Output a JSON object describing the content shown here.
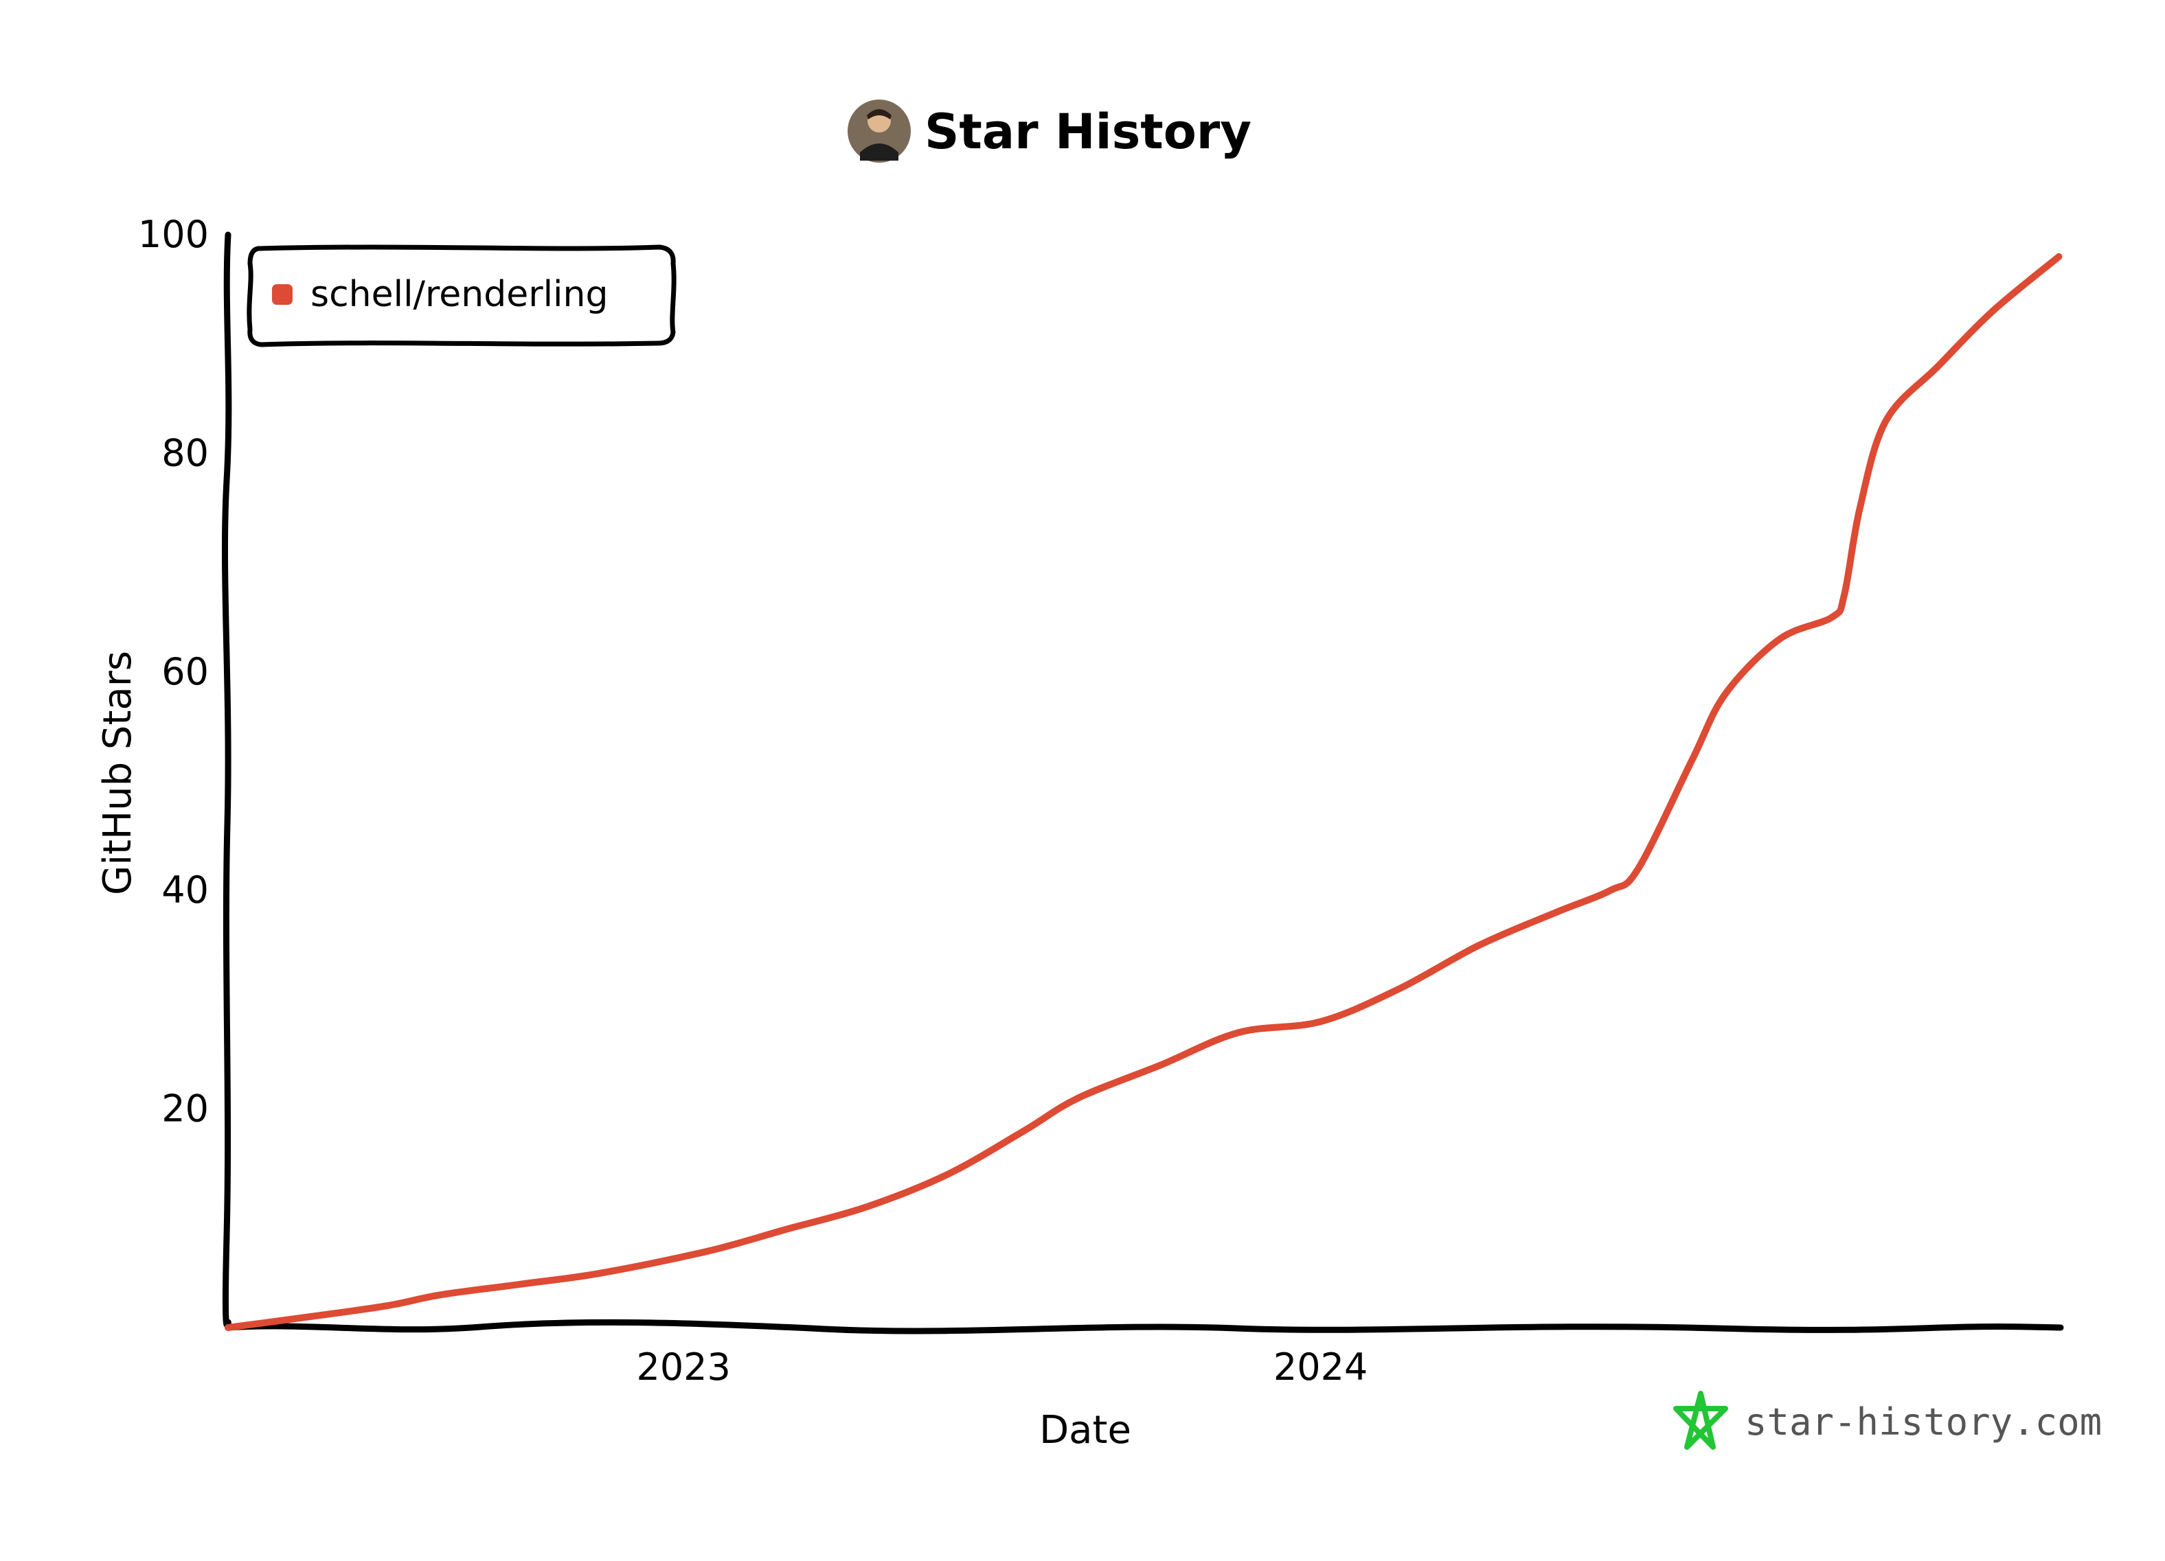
{
  "chart_data": {
    "type": "line",
    "title": "Star History",
    "xlabel": "Date",
    "ylabel": "GitHub Stars",
    "xlim": [
      "2022-04-15",
      "2025-02-28"
    ],
    "ylim": [
      0,
      100
    ],
    "y_ticks": [
      "20",
      "40",
      "60",
      "80",
      "100"
    ],
    "x_ticks": [
      {
        "date": "2023-01-01",
        "label": "2023"
      },
      {
        "date": "2024-01-01",
        "label": "2024"
      }
    ],
    "legend_position": "top-left",
    "grid": false,
    "series": [
      {
        "name": "schell/renderling",
        "color": "#dd4b34",
        "x": [
          "2022-04-15",
          "2022-06-01",
          "2022-07-15",
          "2022-08-15",
          "2022-10-01",
          "2022-11-15",
          "2023-01-15",
          "2023-03-01",
          "2023-04-15",
          "2023-06-01",
          "2023-07-15",
          "2023-08-15",
          "2023-10-01",
          "2023-11-15",
          "2024-01-01",
          "2024-02-15",
          "2024-04-01",
          "2024-05-15",
          "2024-06-15",
          "2024-07-01",
          "2024-08-01",
          "2024-08-20",
          "2024-09-20",
          "2024-10-20",
          "2024-10-27",
          "2024-11-05",
          "2024-11-20",
          "2024-12-20",
          "2025-01-20",
          "2025-02-27"
        ],
        "values": [
          0,
          1,
          2,
          3,
          4,
          5,
          7,
          9,
          11,
          14,
          18,
          21,
          24,
          27,
          28,
          31,
          35,
          38,
          40,
          42,
          52,
          58,
          63,
          65,
          67,
          75,
          83,
          88,
          93,
          98
        ]
      }
    ]
  },
  "brand": {
    "text": "star-history.com",
    "color": "#22c535"
  }
}
